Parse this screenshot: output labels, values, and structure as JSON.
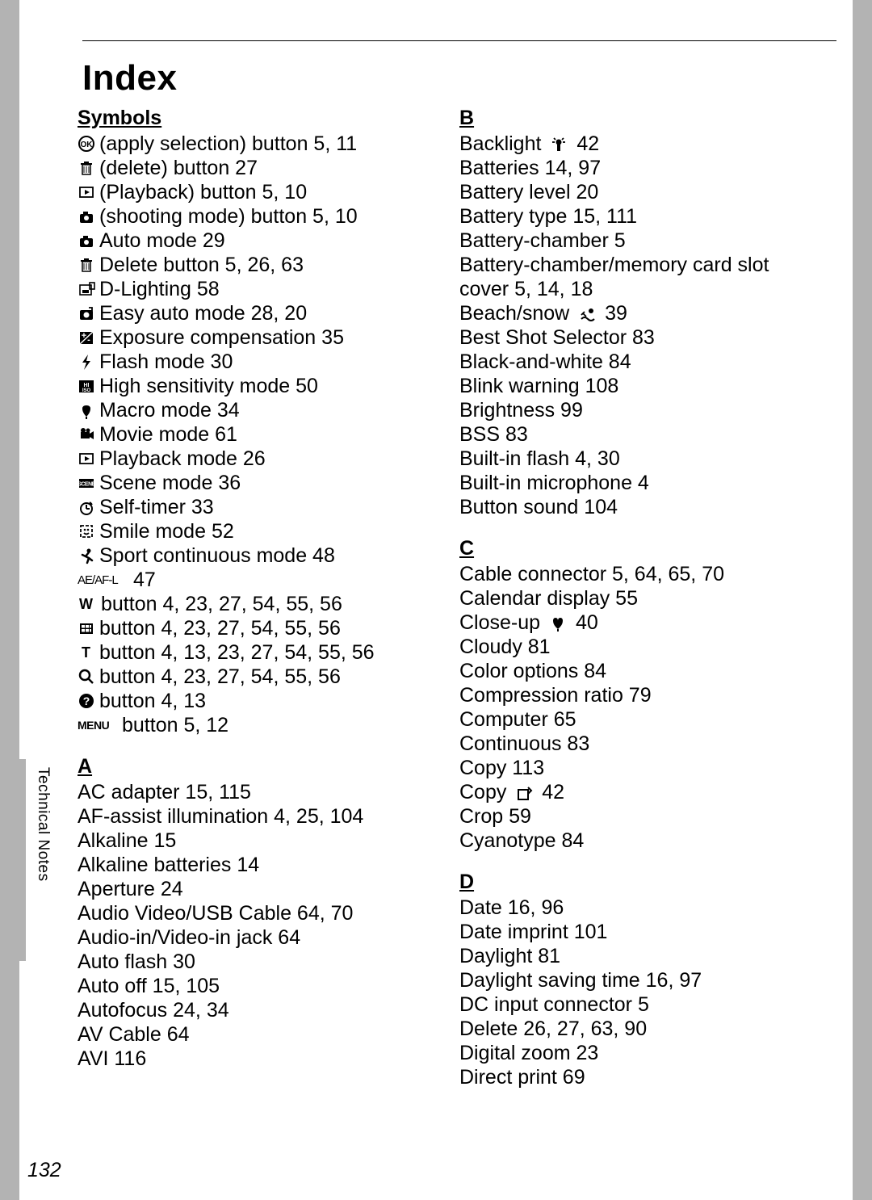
{
  "title": "Index",
  "side_text": "Technical Notes",
  "page_number": "132",
  "left": {
    "symbols_head": "Symbols",
    "entries": [
      {
        "icon": "ok-icon",
        "text": "(apply selection) button 5, 11"
      },
      {
        "icon": "trash-icon",
        "text": "(delete) button 27"
      },
      {
        "icon": "play-box-icon",
        "text": "(Playback) button 5, 10"
      },
      {
        "icon": "camera-icon",
        "text": "(shooting mode) button 5, 10"
      },
      {
        "icon": "camera-icon",
        "text": "Auto mode 29"
      },
      {
        "icon": "trash-icon",
        "text": "Delete button 5, 26, 63"
      },
      {
        "icon": "dlight-icon",
        "text": "D-Lighting 58"
      },
      {
        "icon": "easy-icon",
        "text": "Easy auto mode 28, 20"
      },
      {
        "icon": "exposure-icon",
        "text": "Exposure compensation 35"
      },
      {
        "icon": "flash-icon",
        "text": "Flash mode 30"
      },
      {
        "icon": "iso-icon",
        "text": "High sensitivity mode 50"
      },
      {
        "icon": "macro-icon",
        "text": "Macro mode 34"
      },
      {
        "icon": "movie-icon",
        "text": "Movie mode 61"
      },
      {
        "icon": "play-box-icon",
        "text": "Playback mode 26"
      },
      {
        "icon": "scene-icon",
        "text": "Scene mode 36"
      },
      {
        "icon": "timer-icon",
        "text": "Self-timer 33"
      },
      {
        "icon": "smile-icon",
        "text": "Smile mode 52"
      },
      {
        "icon": "sport-icon",
        "text": "Sport continuous mode 48"
      },
      {
        "icon": "aeaf-icon",
        "text": "47"
      },
      {
        "icon": "w-icon",
        "text": "button 4, 23, 27, 54, 55, 56"
      },
      {
        "icon": "thumb-icon",
        "text": "button 4, 23, 27, 54, 55, 56"
      },
      {
        "icon": "t-icon",
        "text": "button 4, 13, 23, 27, 54, 55, 56"
      },
      {
        "icon": "zoom-icon",
        "text": "button 4, 23, 27, 54, 55, 56"
      },
      {
        "icon": "help-icon",
        "text": "button 4, 13"
      },
      {
        "icon": "menu-icon",
        "text": "button 5, 12"
      }
    ],
    "a_head": "A",
    "a_entries": [
      "AC adapter 15, 115",
      "AF-assist illumination 4, 25, 104",
      "Alkaline 15",
      "Alkaline batteries 14",
      "Aperture 24",
      "Audio Video/USB Cable 64, 70",
      "Audio-in/Video-in jack 64",
      "Auto flash 30",
      "Auto off 15, 105",
      "Autofocus 24, 34",
      "AV Cable 64",
      "AVI 116"
    ]
  },
  "right": {
    "b_head": "B",
    "b_entries": [
      {
        "pre": "Backlight ",
        "icon": "backlight-icon",
        "post": " 42"
      },
      {
        "pre": "Batteries 14, 97"
      },
      {
        "pre": "Battery level 20"
      },
      {
        "pre": "Battery type 15, 111"
      },
      {
        "pre": "Battery-chamber 5"
      },
      {
        "pre": "Battery-chamber/memory card slot cover 5, 14, 18"
      },
      {
        "pre": "Beach/snow ",
        "icon": "beach-icon",
        "post": " 39"
      },
      {
        "pre": "Best Shot Selector 83"
      },
      {
        "pre": "Black-and-white 84"
      },
      {
        "pre": "Blink warning 108"
      },
      {
        "pre": "Brightness 99"
      },
      {
        "pre": "BSS 83"
      },
      {
        "pre": "Built-in flash 4, 30"
      },
      {
        "pre": "Built-in microphone 4"
      },
      {
        "pre": "Button sound 104"
      }
    ],
    "c_head": "C",
    "c_entries": [
      {
        "pre": "Cable connector 5, 64, 65, 70"
      },
      {
        "pre": "Calendar display 55"
      },
      {
        "pre": "Close-up ",
        "icon": "closeup-icon",
        "post": " 40"
      },
      {
        "pre": "Cloudy 81"
      },
      {
        "pre": "Color options 84"
      },
      {
        "pre": "Compression ratio 79"
      },
      {
        "pre": "Computer 65"
      },
      {
        "pre": "Continuous 83"
      },
      {
        "pre": "Copy 113"
      },
      {
        "pre": "Copy ",
        "icon": "copy-icon",
        "post": " 42"
      },
      {
        "pre": "Crop 59"
      },
      {
        "pre": "Cyanotype 84"
      }
    ],
    "d_head": "D",
    "d_entries": [
      {
        "pre": "Date 16, 96"
      },
      {
        "pre": "Date imprint 101"
      },
      {
        "pre": "Daylight 81"
      },
      {
        "pre": "Daylight saving time 16, 97"
      },
      {
        "pre": "DC input connector 5"
      },
      {
        "pre": "Delete 26, 27, 63, 90"
      },
      {
        "pre": "Digital zoom 23"
      },
      {
        "pre": "Direct print 69"
      }
    ]
  }
}
